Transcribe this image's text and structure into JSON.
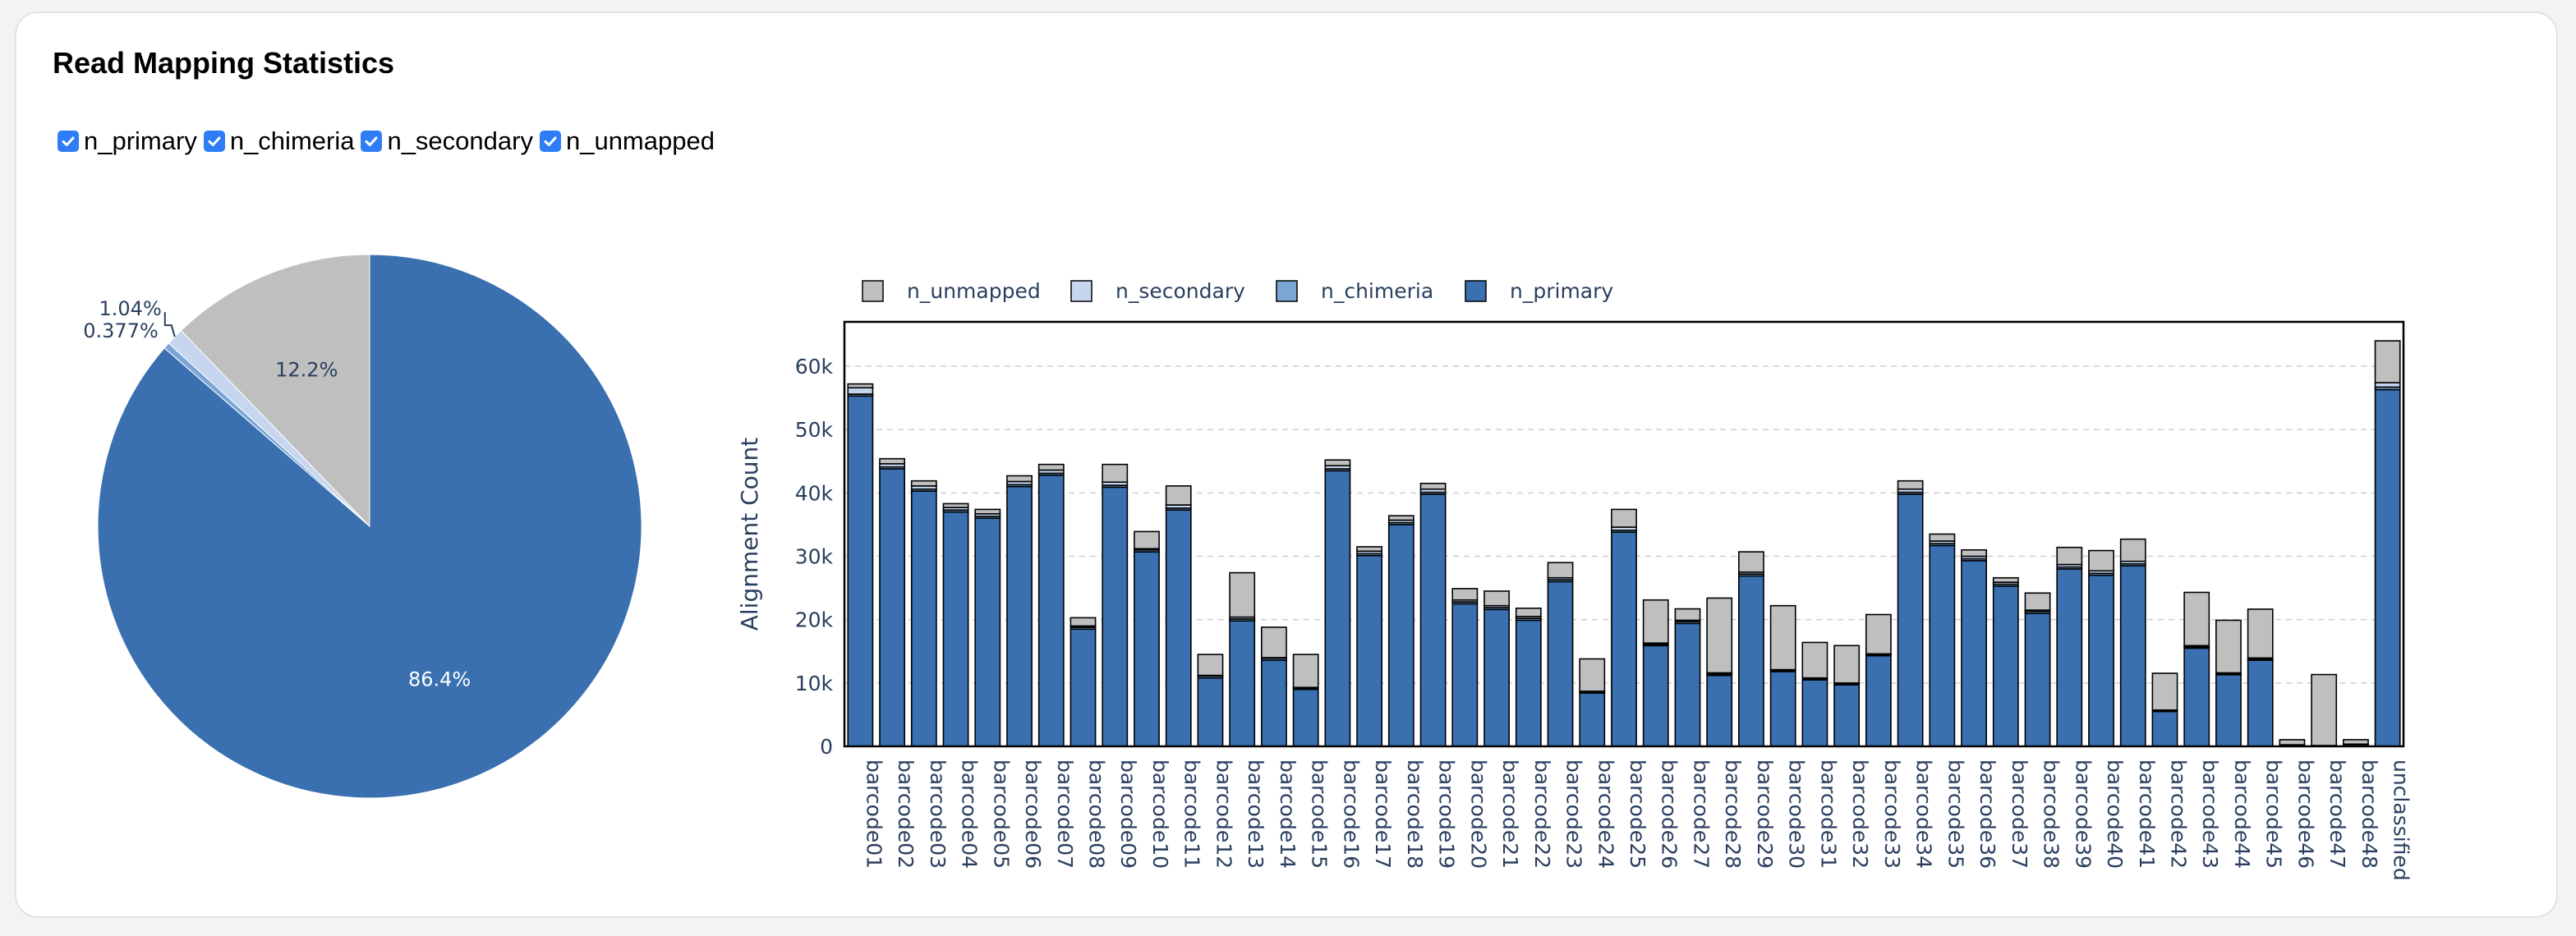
{
  "page": {
    "title": "Read Mapping Statistics"
  },
  "filters": [
    {
      "label": "n_primary",
      "checked": true
    },
    {
      "label": "n_chimeria",
      "checked": true
    },
    {
      "label": "n_secondary",
      "checked": true
    },
    {
      "label": "n_unmapped",
      "checked": true
    }
  ],
  "colors": {
    "n_primary": "#3a6fb0",
    "n_chimeria": "#7aa6d6",
    "n_secondary": "#c6d6ee",
    "n_unmapped": "#bfbfbf",
    "checkbox": "#2f7df6"
  },
  "chart_data": [
    {
      "type": "pie",
      "labels": [
        "n_primary",
        "n_chimeria",
        "n_secondary",
        "n_unmapped"
      ],
      "values": [
        86.4,
        0.377,
        1.04,
        12.2
      ],
      "slice_labels": [
        "86.4%",
        "0.377%",
        "1.04%",
        "12.2%"
      ]
    },
    {
      "type": "bar",
      "stacked": true,
      "ylabel": "Alignment Count",
      "ylim": [
        0,
        67000
      ],
      "yticks": [
        0,
        10000,
        20000,
        30000,
        40000,
        50000,
        60000
      ],
      "ytick_labels": [
        "0",
        "10k",
        "20k",
        "30k",
        "40k",
        "50k",
        "60k"
      ],
      "grid": true,
      "legend_position": "top",
      "legend": [
        "n_unmapped",
        "n_secondary",
        "n_chimeria",
        "n_primary"
      ],
      "categories": [
        "barcode01",
        "barcode02",
        "barcode03",
        "barcode04",
        "barcode05",
        "barcode06",
        "barcode07",
        "barcode08",
        "barcode09",
        "barcode10",
        "barcode11",
        "barcode12",
        "barcode13",
        "barcode14",
        "barcode15",
        "barcode16",
        "barcode17",
        "barcode18",
        "barcode19",
        "barcode20",
        "barcode21",
        "barcode22",
        "barcode23",
        "barcode24",
        "barcode25",
        "barcode26",
        "barcode27",
        "barcode28",
        "barcode29",
        "barcode30",
        "barcode31",
        "barcode32",
        "barcode33",
        "barcode34",
        "barcode35",
        "barcode36",
        "barcode37",
        "barcode38",
        "barcode39",
        "barcode40",
        "barcode41",
        "barcode42",
        "barcode43",
        "barcode44",
        "barcode45",
        "barcode46",
        "barcode47",
        "barcode48",
        "unclassified"
      ],
      "series": [
        {
          "name": "n_primary",
          "values": [
            55300,
            43800,
            40300,
            37000,
            36000,
            41000,
            42800,
            18500,
            40900,
            30700,
            37300,
            10800,
            19800,
            13600,
            9000,
            43500,
            30100,
            35000,
            39800,
            22500,
            21600,
            19900,
            26000,
            8400,
            33800,
            15900,
            19400,
            11200,
            26900,
            11800,
            10500,
            9700,
            14300,
            39800,
            31700,
            29300,
            25300,
            21000,
            28000,
            27000,
            28500,
            5500,
            15500,
            11300,
            13600,
            200,
            100,
            300,
            56300
          ]
        },
        {
          "name": "n_chimeria",
          "values": [
            300,
            300,
            300,
            300,
            300,
            300,
            300,
            300,
            300,
            300,
            300,
            300,
            300,
            300,
            200,
            300,
            300,
            300,
            300,
            300,
            300,
            300,
            300,
            200,
            300,
            200,
            300,
            200,
            300,
            200,
            200,
            200,
            200,
            300,
            300,
            300,
            300,
            300,
            300,
            300,
            300,
            150,
            200,
            200,
            200,
            20,
            10,
            20,
            400
          ]
        },
        {
          "name": "n_secondary",
          "values": [
            1000,
            500,
            500,
            400,
            400,
            500,
            500,
            200,
            500,
            200,
            500,
            100,
            300,
            100,
            100,
            500,
            400,
            400,
            500,
            300,
            300,
            300,
            300,
            100,
            500,
            200,
            200,
            200,
            300,
            100,
            100,
            100,
            100,
            500,
            400,
            400,
            300,
            200,
            400,
            400,
            400,
            80,
            200,
            100,
            150,
            30,
            20,
            30,
            700
          ]
        },
        {
          "name": "n_unmapped",
          "values": [
            600,
            800,
            800,
            600,
            700,
            900,
            900,
            1300,
            2800,
            2700,
            3000,
            3300,
            7000,
            4800,
            5200,
            900,
            700,
            700,
            900,
            1800,
            2300,
            1300,
            2400,
            5100,
            2800,
            6800,
            1800,
            11800,
            3200,
            10100,
            5600,
            5900,
            6200,
            1300,
            1100,
            1000,
            700,
            2700,
            2700,
            3200,
            3500,
            5800,
            8400,
            8300,
            7700,
            800,
            11200,
            700,
            6600
          ]
        }
      ]
    }
  ]
}
